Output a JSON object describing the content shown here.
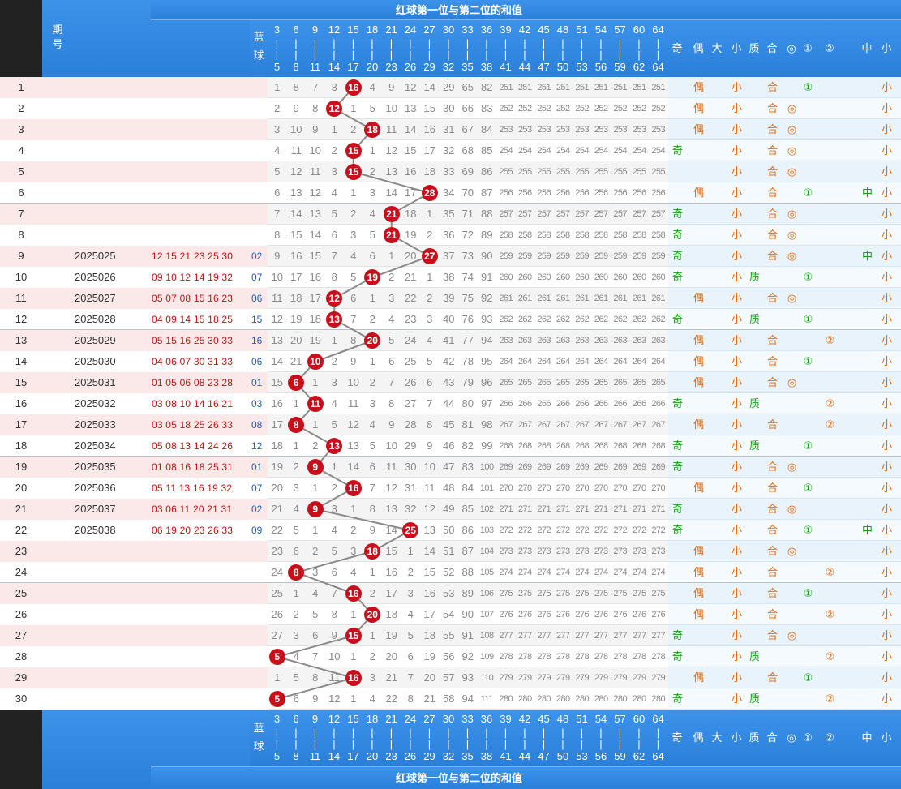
{
  "header": {
    "title": "红球第一位与第二位的和值",
    "col_issue": "期号",
    "col_blue": [
      "蓝",
      "球"
    ],
    "numbers_top": [
      "3",
      "6",
      "9",
      "12",
      "15",
      "18",
      "21",
      "24",
      "27",
      "30",
      "33",
      "36",
      "39",
      "42",
      "45",
      "48",
      "51",
      "54",
      "57",
      "60",
      "64"
    ],
    "numbers_bottom": [
      "5",
      "8",
      "11",
      "14",
      "17",
      "20",
      "23",
      "26",
      "29",
      "32",
      "35",
      "38",
      "41",
      "44",
      "47",
      "50",
      "53",
      "56",
      "59",
      "62",
      "64"
    ],
    "attr_labels": [
      "奇",
      "偶",
      "大",
      "小",
      "质",
      "合",
      "①",
      "②",
      "◎",
      "中",
      "小"
    ]
  },
  "colors": {
    "header_bg": "#2f86e4",
    "ball": "#c8101c",
    "odd": "#18a018",
    "even": "#e06a10",
    "small": "#e06a10",
    "circle": "#18a018",
    "blue_num": "#1a5cc8",
    "red_num": "#c81010"
  },
  "rows": [
    {
      "n": "1",
      "issue": "",
      "balls": "",
      "blue": "",
      "sum": 5,
      "cells": [
        1,
        8,
        7,
        3,
        null,
        4,
        9,
        12,
        14,
        29,
        65,
        82,
        251,
        251,
        251,
        251,
        251,
        251,
        251,
        251,
        251
      ],
      "marks": [
        "",
        "偶",
        "",
        "小",
        "",
        "合",
        "①",
        "",
        "",
        "",
        "小"
      ]
    },
    {
      "n": "2",
      "issue": "",
      "balls": "",
      "blue": "",
      "sum": 4,
      "cells": [
        2,
        9,
        8,
        null,
        1,
        5,
        10,
        13,
        15,
        30,
        66,
        83,
        252,
        252,
        252,
        252,
        252,
        252,
        252,
        252,
        252
      ],
      "marks": [
        "",
        "偶",
        "",
        "小",
        "",
        "合",
        "",
        "",
        "◎",
        "",
        "小"
      ]
    },
    {
      "n": "3",
      "issue": "",
      "balls": "",
      "blue": "",
      "sum": 6,
      "cells": [
        3,
        10,
        9,
        1,
        2,
        null,
        11,
        14,
        16,
        31,
        67,
        84,
        253,
        253,
        253,
        253,
        253,
        253,
        253,
        253,
        253
      ],
      "marks": [
        "",
        "偶",
        "",
        "小",
        "",
        "合",
        "",
        "",
        "◎",
        "",
        "小"
      ]
    },
    {
      "n": "4",
      "issue": "",
      "balls": "",
      "blue": "",
      "sum": 5,
      "cells": [
        4,
        11,
        10,
        2,
        null,
        1,
        12,
        15,
        17,
        32,
        68,
        85,
        254,
        254,
        254,
        254,
        254,
        254,
        254,
        254,
        254
      ],
      "marks": [
        "奇",
        "",
        "",
        "小",
        "",
        "合",
        "",
        "",
        "◎",
        "",
        "小"
      ]
    },
    {
      "n": "5",
      "issue": "",
      "balls": "",
      "blue": "",
      "sum": 5,
      "cells": [
        5,
        12,
        11,
        3,
        null,
        2,
        13,
        16,
        18,
        33,
        69,
        86,
        255,
        255,
        255,
        255,
        255,
        255,
        255,
        255,
        255
      ],
      "marks": [
        "",
        "",
        "",
        "小",
        "",
        "合",
        "",
        "",
        "◎",
        "",
        "小"
      ]
    },
    {
      "n": "6",
      "issue": "",
      "balls": "",
      "blue": "",
      "sum": 9,
      "cells": [
        6,
        13,
        12,
        4,
        1,
        3,
        14,
        17,
        null,
        34,
        70,
        87,
        256,
        256,
        256,
        256,
        256,
        256,
        256,
        256,
        256
      ],
      "marks": [
        "",
        "偶",
        "",
        "小",
        "",
        "合",
        "①",
        "",
        "",
        "中",
        "小"
      ]
    },
    {
      "n": "7",
      "issue": "",
      "balls": "",
      "blue": "",
      "sum": 7,
      "cells": [
        7,
        14,
        13,
        5,
        2,
        4,
        null,
        18,
        1,
        35,
        71,
        88,
        257,
        257,
        257,
        257,
        257,
        257,
        257,
        257,
        257
      ],
      "marks": [
        "奇",
        "",
        "",
        "小",
        "",
        "合",
        "",
        "",
        "◎",
        "",
        "小"
      ]
    },
    {
      "n": "8",
      "issue": "",
      "balls": "",
      "blue": "",
      "sum": 7,
      "cells": [
        8,
        15,
        14,
        6,
        3,
        5,
        null,
        19,
        2,
        36,
        72,
        89,
        258,
        258,
        258,
        258,
        258,
        258,
        258,
        258,
        258
      ],
      "marks": [
        "奇",
        "",
        "",
        "小",
        "",
        "合",
        "",
        "",
        "◎",
        "",
        "小"
      ]
    },
    {
      "n": "9",
      "issue": "2025025",
      "balls": "12 15 21 23 25 30",
      "blue": "02",
      "sum": 9,
      "cells": [
        9,
        16,
        15,
        7,
        4,
        6,
        1,
        20,
        null,
        37,
        73,
        90,
        259,
        259,
        259,
        259,
        259,
        259,
        259,
        259,
        259
      ],
      "marks": [
        "奇",
        "",
        "",
        "小",
        "",
        "合",
        "",
        "",
        "◎",
        "中",
        "小"
      ]
    },
    {
      "n": "10",
      "issue": "2025026",
      "balls": "09 10 12 14 19 32",
      "blue": "07",
      "sum": 6,
      "cells": [
        10,
        17,
        16,
        8,
        5,
        null,
        2,
        21,
        1,
        38,
        74,
        91,
        260,
        260,
        260,
        260,
        260,
        260,
        260,
        260,
        260
      ],
      "marks": [
        "奇",
        "",
        "",
        "小",
        "质",
        "",
        "①",
        "",
        "",
        "",
        "小"
      ]
    },
    {
      "n": "11",
      "issue": "2025027",
      "balls": "05 07 08 15 16 23",
      "blue": "06",
      "sum": 4,
      "cells": [
        11,
        18,
        17,
        null,
        6,
        1,
        3,
        22,
        2,
        39,
        75,
        92,
        261,
        261,
        261,
        261,
        261,
        261,
        261,
        261,
        261
      ],
      "marks": [
        "",
        "偶",
        "",
        "小",
        "",
        "合",
        "",
        "",
        "◎",
        "",
        "小"
      ]
    },
    {
      "n": "12",
      "issue": "2025028",
      "balls": "04 09 14 15 18 25",
      "blue": "15",
      "sum": 4,
      "cells": [
        12,
        19,
        18,
        null,
        7,
        2,
        4,
        23,
        3,
        40,
        76,
        93,
        262,
        262,
        262,
        262,
        262,
        262,
        262,
        262,
        262
      ],
      "marks": [
        "奇",
        "",
        "",
        "小",
        "质",
        "",
        "①",
        "",
        "",
        "",
        "小"
      ]
    },
    {
      "n": "13",
      "issue": "2025029",
      "balls": "05 15 16 25 30 33",
      "blue": "16",
      "sum": 6,
      "cells": [
        13,
        20,
        19,
        1,
        8,
        null,
        5,
        24,
        4,
        41,
        77,
        94,
        263,
        263,
        263,
        263,
        263,
        263,
        263,
        263,
        263
      ],
      "marks": [
        "",
        "偶",
        "",
        "小",
        "",
        "合",
        "",
        "②",
        "",
        "",
        "小"
      ]
    },
    {
      "n": "14",
      "issue": "2025030",
      "balls": "04 06 07 30 31 33",
      "blue": "06",
      "sum": 3,
      "cells": [
        14,
        21,
        null,
        2,
        9,
        1,
        6,
        25,
        5,
        42,
        78,
        95,
        264,
        264,
        264,
        264,
        264,
        264,
        264,
        264,
        264
      ],
      "marks": [
        "",
        "偶",
        "",
        "小",
        "",
        "合",
        "①",
        "",
        "",
        "",
        "小"
      ]
    },
    {
      "n": "15",
      "issue": "2025031",
      "balls": "01 05 06 08 23 28",
      "blue": "01",
      "sum": 2,
      "cells": [
        15,
        null,
        1,
        3,
        10,
        2,
        7,
        26,
        6,
        43,
        79,
        96,
        265,
        265,
        265,
        265,
        265,
        265,
        265,
        265,
        265
      ],
      "marks": [
        "",
        "偶",
        "",
        "小",
        "",
        "合",
        "",
        "",
        "◎",
        "",
        "小"
      ]
    },
    {
      "n": "16",
      "issue": "2025032",
      "balls": "03 08 10 14 16 21",
      "blue": "03",
      "sum": 3,
      "cells": [
        16,
        1,
        null,
        4,
        11,
        3,
        8,
        27,
        7,
        44,
        80,
        97,
        266,
        266,
        266,
        266,
        266,
        266,
        266,
        266,
        266
      ],
      "marks": [
        "奇",
        "",
        "",
        "小",
        "质",
        "",
        "",
        "②",
        "",
        "",
        "小"
      ]
    },
    {
      "n": "17",
      "issue": "2025033",
      "balls": "03 05 18 25 26 33",
      "blue": "08",
      "sum": 2,
      "cells": [
        17,
        null,
        1,
        5,
        12,
        4,
        9,
        28,
        8,
        45,
        81,
        98,
        267,
        267,
        267,
        267,
        267,
        267,
        267,
        267,
        267
      ],
      "marks": [
        "",
        "偶",
        "",
        "小",
        "",
        "合",
        "",
        "②",
        "",
        "",
        "小"
      ]
    },
    {
      "n": "18",
      "issue": "2025034",
      "balls": "05 08 13 14 24 26",
      "blue": "12",
      "sum": 4,
      "cells": [
        18,
        1,
        2,
        null,
        13,
        5,
        10,
        29,
        9,
        46,
        82,
        99,
        268,
        268,
        268,
        268,
        268,
        268,
        268,
        268,
        268
      ],
      "marks": [
        "奇",
        "",
        "",
        "小",
        "质",
        "",
        "①",
        "",
        "",
        "",
        "小"
      ]
    },
    {
      "n": "19",
      "issue": "2025035",
      "balls": "01 08 16 18 25 31",
      "blue": "01",
      "sum": 3,
      "cells": [
        19,
        2,
        null,
        1,
        14,
        6,
        11,
        30,
        10,
        47,
        83,
        100,
        269,
        269,
        269,
        269,
        269,
        269,
        269,
        269,
        269
      ],
      "marks": [
        "奇",
        "",
        "",
        "小",
        "",
        "合",
        "",
        "",
        "◎",
        "",
        "小"
      ]
    },
    {
      "n": "20",
      "issue": "2025036",
      "balls": "05 11 13 16 19 32",
      "blue": "07",
      "sum": 5,
      "cells": [
        20,
        3,
        1,
        2,
        null,
        7,
        12,
        31,
        11,
        48,
        84,
        101,
        270,
        270,
        270,
        270,
        270,
        270,
        270,
        270,
        270
      ],
      "marks": [
        "",
        "偶",
        "",
        "小",
        "",
        "合",
        "①",
        "",
        "",
        "",
        "小"
      ]
    },
    {
      "n": "21",
      "issue": "2025037",
      "balls": "03 06 11 20 21 31",
      "blue": "02",
      "sum": 3,
      "cells": [
        21,
        4,
        null,
        3,
        1,
        8,
        13,
        32,
        12,
        49,
        85,
        102,
        271,
        271,
        271,
        271,
        271,
        271,
        271,
        271,
        271
      ],
      "marks": [
        "奇",
        "",
        "",
        "小",
        "",
        "合",
        "",
        "",
        "◎",
        "",
        "小"
      ]
    },
    {
      "n": "22",
      "issue": "2025038",
      "balls": "06 19 20 23 26 33",
      "blue": "09",
      "sum": 8,
      "cells": [
        22,
        5,
        1,
        4,
        2,
        9,
        14,
        null,
        13,
        50,
        86,
        103,
        272,
        272,
        272,
        272,
        272,
        272,
        272,
        272,
        272
      ],
      "marks": [
        "奇",
        "",
        "",
        "小",
        "",
        "合",
        "①",
        "",
        "",
        "中",
        "小"
      ]
    },
    {
      "n": "23",
      "issue": "",
      "balls": "",
      "blue": "",
      "sum": 6,
      "cells": [
        23,
        6,
        2,
        5,
        3,
        null,
        15,
        1,
        14,
        51,
        87,
        104,
        273,
        273,
        273,
        273,
        273,
        273,
        273,
        273,
        273
      ],
      "marks": [
        "",
        "偶",
        "",
        "小",
        "",
        "合",
        "",
        "",
        "◎",
        "",
        "小"
      ]
    },
    {
      "n": "24",
      "issue": "",
      "balls": "",
      "blue": "",
      "sum": 2,
      "cells": [
        24,
        null,
        3,
        6,
        4,
        1,
        16,
        2,
        15,
        52,
        88,
        105,
        274,
        274,
        274,
        274,
        274,
        274,
        274,
        274,
        274
      ],
      "marks": [
        "",
        "偶",
        "",
        "小",
        "",
        "合",
        "",
        "②",
        "",
        "",
        "小"
      ]
    },
    {
      "n": "25",
      "issue": "",
      "balls": "",
      "blue": "",
      "sum": 5,
      "cells": [
        25,
        1,
        4,
        7,
        null,
        2,
        17,
        3,
        16,
        53,
        89,
        106,
        275,
        275,
        275,
        275,
        275,
        275,
        275,
        275,
        275
      ],
      "marks": [
        "",
        "偶",
        "",
        "小",
        "",
        "合",
        "①",
        "",
        "",
        "",
        "小"
      ]
    },
    {
      "n": "26",
      "issue": "",
      "balls": "",
      "blue": "",
      "sum": 6,
      "cells": [
        26,
        2,
        5,
        8,
        1,
        null,
        18,
        4,
        17,
        54,
        90,
        107,
        276,
        276,
        276,
        276,
        276,
        276,
        276,
        276,
        276
      ],
      "marks": [
        "",
        "偶",
        "",
        "小",
        "",
        "合",
        "",
        "②",
        "",
        "",
        "小"
      ]
    },
    {
      "n": "27",
      "issue": "",
      "balls": "",
      "blue": "",
      "sum": 5,
      "cells": [
        27,
        3,
        6,
        9,
        null,
        1,
        19,
        5,
        18,
        55,
        91,
        108,
        277,
        277,
        277,
        277,
        277,
        277,
        277,
        277,
        277
      ],
      "marks": [
        "奇",
        "",
        "",
        "小",
        "",
        "合",
        "",
        "",
        "◎",
        "",
        "小"
      ]
    },
    {
      "n": "28",
      "issue": "",
      "balls": "",
      "blue": "",
      "sum": 1,
      "cells": [
        null,
        4,
        7,
        10,
        1,
        2,
        20,
        6,
        19,
        56,
        92,
        109,
        278,
        278,
        278,
        278,
        278,
        278,
        278,
        278,
        278
      ],
      "marks": [
        "奇",
        "",
        "",
        "小",
        "质",
        "",
        "",
        "②",
        "",
        "",
        "小"
      ]
    },
    {
      "n": "29",
      "issue": "",
      "balls": "",
      "blue": "",
      "sum": 5,
      "cells": [
        1,
        5,
        8,
        11,
        null,
        3,
        21,
        7,
        20,
        57,
        93,
        110,
        279,
        279,
        279,
        279,
        279,
        279,
        279,
        279,
        279
      ],
      "marks": [
        "",
        "偶",
        "",
        "小",
        "",
        "合",
        "①",
        "",
        "",
        "",
        "小"
      ]
    },
    {
      "n": "30",
      "issue": "",
      "balls": "",
      "blue": "",
      "sum": 1,
      "cells": [
        null,
        6,
        9,
        12,
        1,
        4,
        22,
        8,
        21,
        58,
        94,
        111,
        280,
        280,
        280,
        280,
        280,
        280,
        280,
        280,
        280
      ],
      "marks": [
        "奇",
        "",
        "",
        "小",
        "质",
        "",
        "",
        "②",
        "",
        "",
        "小"
      ]
    }
  ],
  "ball_labels": [
    "16",
    "12",
    "18",
    "15",
    "15",
    "28",
    "21",
    "21",
    "27",
    "19",
    "12",
    "13",
    "20",
    "10",
    "6",
    "11",
    "8",
    "13",
    "9",
    "16",
    "9",
    "25",
    "18",
    "8",
    "16",
    "20",
    "15",
    "5",
    "16",
    "5"
  ]
}
